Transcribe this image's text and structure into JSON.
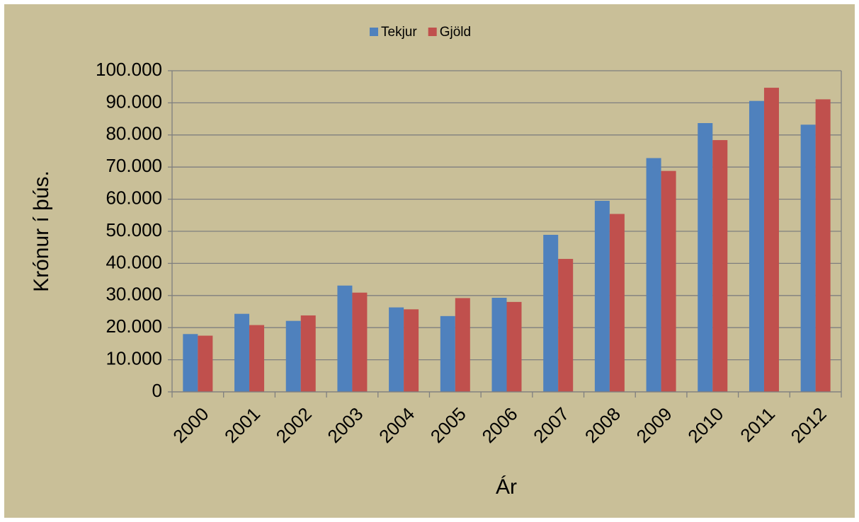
{
  "chart_data": {
    "type": "bar",
    "categories": [
      "2000",
      "2001",
      "2002",
      "2003",
      "2004",
      "2005",
      "2006",
      "2007",
      "2008",
      "2009",
      "2010",
      "2011",
      "2012"
    ],
    "series": [
      {
        "name": "Tekjur",
        "color": "#4f81bd",
        "values": [
          18000,
          24300,
          22100,
          33100,
          26300,
          23600,
          29300,
          48900,
          59500,
          72800,
          83700,
          90600,
          83200
        ]
      },
      {
        "name": "Gjöld",
        "color": "#c0504d",
        "values": [
          17500,
          20800,
          23800,
          30900,
          25700,
          29200,
          28000,
          41400,
          55400,
          68800,
          78400,
          94700,
          91100
        ]
      }
    ],
    "ylabel": "Krónur í þús.",
    "xlabel": "Ár",
    "ylim": [
      0,
      100000
    ],
    "yticks": [
      0,
      {
        "value": 10000,
        "label": "10.000"
      },
      {
        "value": 20000,
        "label": "20.000"
      },
      {
        "value": 30000,
        "label": "30.000"
      },
      {
        "value": 40000,
        "label": "40.000"
      },
      {
        "value": 50000,
        "label": "50.000"
      },
      {
        "value": 60000,
        "label": "60.000"
      },
      {
        "value": 70000,
        "label": "70.000"
      },
      {
        "value": 80000,
        "label": "80.000"
      },
      {
        "value": 90000,
        "label": "90.000"
      },
      {
        "value": 100000,
        "label": "100.000"
      }
    ],
    "grid": true,
    "legend": "top"
  }
}
